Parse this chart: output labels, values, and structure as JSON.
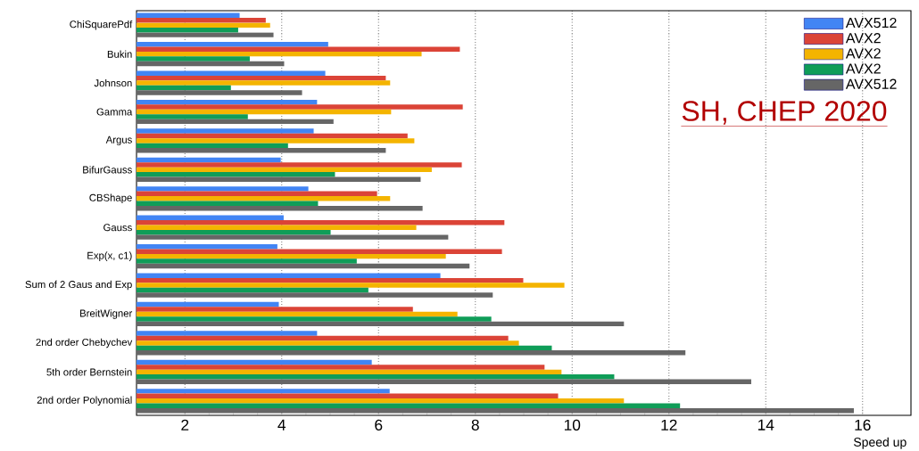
{
  "chart_data": {
    "type": "bar",
    "orientation": "horizontal",
    "xlabel": "Speed up",
    "categories": [
      "ChiSquarePdf",
      "Bukin",
      "Johnson",
      "Gamma",
      "Argus",
      "BifurGauss",
      "CBShape",
      "Gauss",
      "Exp(x, c1)",
      "Sum of 2 Gaus and Exp",
      "BreitWigner",
      "2nd order Chebychev",
      "5th order Bernstein",
      "2nd order Polynomial"
    ],
    "series": [
      {
        "name": "AVX512",
        "color": "#4285f4",
        "values": [
          3.13,
          4.96,
          4.9,
          4.73,
          4.66,
          3.98,
          4.55,
          4.04,
          3.91,
          7.28,
          3.94,
          4.73,
          5.86,
          6.23
        ]
      },
      {
        "name": "AVX2",
        "color": "#db4437",
        "values": [
          3.67,
          7.68,
          6.15,
          7.74,
          6.6,
          7.72,
          5.97,
          8.6,
          8.55,
          8.99,
          6.71,
          8.68,
          9.43,
          9.71
        ]
      },
      {
        "name": "AVX2",
        "color": "#f4b400",
        "values": [
          3.76,
          6.89,
          6.24,
          6.26,
          6.74,
          7.1,
          6.24,
          6.78,
          7.39,
          9.84,
          7.63,
          8.9,
          9.78,
          11.07
        ]
      },
      {
        "name": "AVX2",
        "color": "#0f9d58",
        "values": [
          3.1,
          3.34,
          2.95,
          3.3,
          4.13,
          5.1,
          4.75,
          5.01,
          5.55,
          5.79,
          8.33,
          9.58,
          10.87,
          12.23
        ]
      },
      {
        "name": "AVX512",
        "color": "#666666",
        "values": [
          3.83,
          4.05,
          4.42,
          5.07,
          6.15,
          6.87,
          6.91,
          7.44,
          7.88,
          8.36,
          11.07,
          12.34,
          13.7,
          15.82
        ]
      }
    ],
    "xlim": [
      1,
      17
    ],
    "xticks": [
      2,
      4,
      6,
      8,
      10,
      12,
      14,
      16
    ],
    "grid": "x",
    "legend": "top right",
    "annotations": [
      "SH, CHEP 2020"
    ]
  }
}
